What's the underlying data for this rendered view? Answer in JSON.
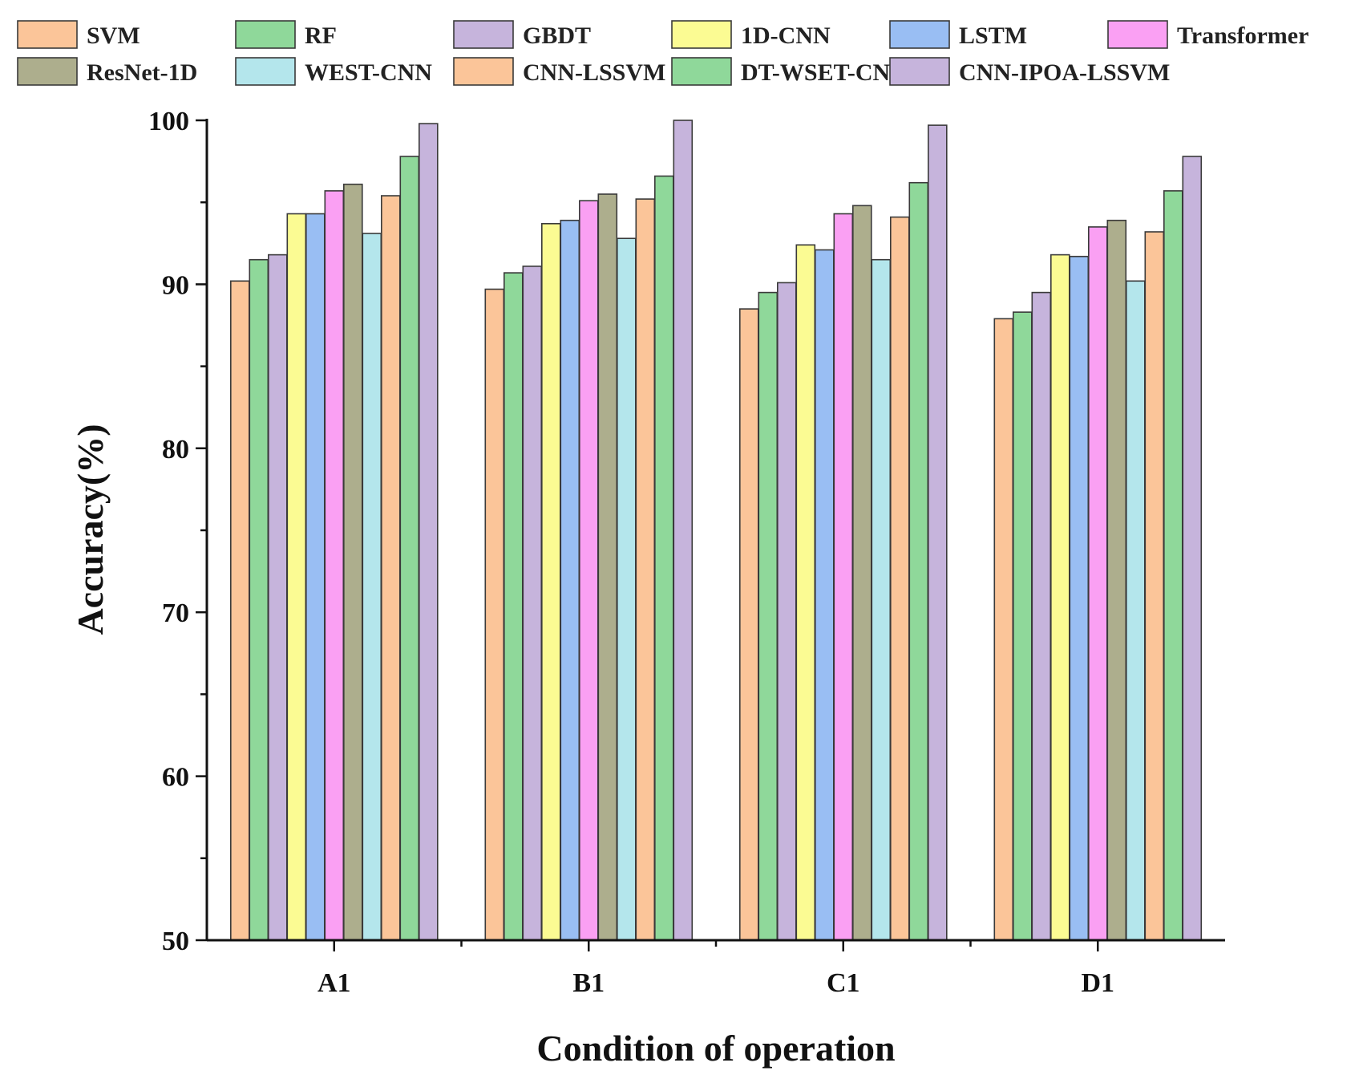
{
  "chart_data": {
    "type": "bar",
    "title": "",
    "xlabel": "Condition of operation",
    "ylabel": "Accuracy(%)",
    "ylim": [
      50,
      100
    ],
    "yticks": [
      50,
      60,
      70,
      80,
      90,
      100
    ],
    "grid": false,
    "legend_position": "top",
    "categories": [
      "A1",
      "B1",
      "C1",
      "D1"
    ],
    "series": [
      {
        "name": "SVM",
        "color": "#FBC599",
        "values": [
          90.2,
          89.7,
          88.5,
          87.9
        ]
      },
      {
        "name": "RF",
        "color": "#8FD89A",
        "values": [
          91.5,
          90.7,
          89.5,
          88.3
        ]
      },
      {
        "name": "GBDT",
        "color": "#C6B4DC",
        "values": [
          91.8,
          91.1,
          90.1,
          89.5
        ]
      },
      {
        "name": "1D-CNN",
        "color": "#FBFB93",
        "values": [
          94.3,
          93.7,
          92.4,
          91.8
        ]
      },
      {
        "name": "LSTM",
        "color": "#99BEF3",
        "values": [
          94.3,
          93.9,
          92.1,
          91.7
        ]
      },
      {
        "name": "Transformer",
        "color": "#FAA0F3",
        "values": [
          95.7,
          95.1,
          94.3,
          93.5
        ]
      },
      {
        "name": "ResNet-1D",
        "color": "#ADAE8D",
        "values": [
          96.1,
          95.5,
          94.8,
          93.9
        ]
      },
      {
        "name": "WEST-CNN",
        "color": "#B4E6EC",
        "values": [
          93.1,
          92.8,
          91.5,
          90.2
        ]
      },
      {
        "name": "CNN-LSSVM",
        "color": "#FBC599",
        "values": [
          95.4,
          95.2,
          94.1,
          93.2
        ]
      },
      {
        "name": "DT-WSET-CNN",
        "color": "#8FD89A",
        "values": [
          97.8,
          96.6,
          96.2,
          95.7
        ]
      },
      {
        "name": "CNN-IPOA-LSSVM",
        "color": "#C6B4DC",
        "values": [
          99.8,
          100.0,
          99.7,
          97.8
        ]
      }
    ]
  }
}
